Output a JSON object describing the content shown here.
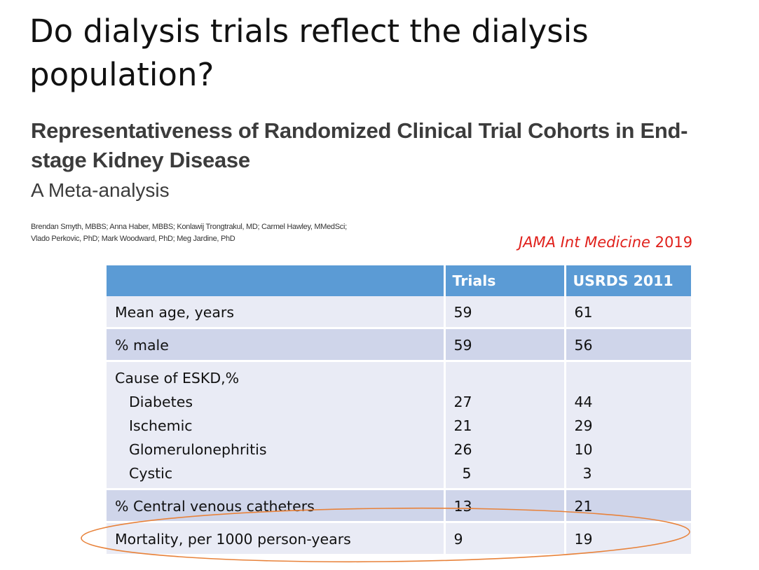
{
  "slide": {
    "title": "Do dialysis trials reflect the dialysis population?"
  },
  "article": {
    "title": "Representativeness of Randomized Clinical Trial Cohorts in End-stage Kidney Disease",
    "subtitle": "A Meta-analysis",
    "authors_line1": "Brendan Smyth, MBBS; Anna Haber, MBBS; Konlawij Trongtrakul, MD; Carmel Hawley, MMedSci;",
    "authors_line2": "Vlado Perkovic, PhD; Mark Woodward, PhD; Meg Jardine, PhD"
  },
  "citation": {
    "journal": "JAMA Int Medicine",
    "year": "2019",
    "color": "#e0201b"
  },
  "table": {
    "header_color": "#5b9bd5",
    "columns": [
      "",
      "Trials",
      "USRDS 2011"
    ],
    "rows": [
      {
        "label": "Mean age, years",
        "trials": "59",
        "usrds": "61"
      },
      {
        "label": "% male",
        "trials": "59",
        "usrds": "56"
      },
      {
        "label": "Cause of ESKD,%",
        "sub": [
          {
            "label": "Diabetes",
            "trials": "27",
            "usrds": "44"
          },
          {
            "label": "Ischemic",
            "trials": "21",
            "usrds": "29"
          },
          {
            "label": "Glomerulonephritis",
            "trials": "26",
            "usrds": "10"
          },
          {
            "label": "Cystic",
            "trials": "5",
            "usrds": "3"
          }
        ]
      },
      {
        "label": "% Central venous catheters",
        "trials": "13",
        "usrds": "21"
      },
      {
        "label": "Mortality, per 1000 person-years",
        "trials": "9",
        "usrds": "19",
        "highlighted": true
      }
    ]
  },
  "annotation": {
    "highlight_color": "#e8823a"
  }
}
